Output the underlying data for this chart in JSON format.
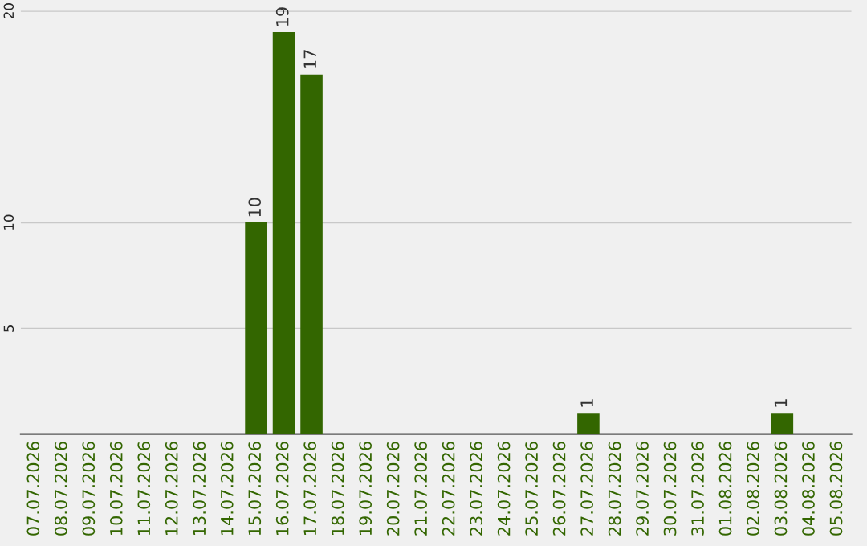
{
  "chart_data": {
    "type": "bar",
    "categories": [
      "07.07.2026",
      "08.07.2026",
      "09.07.2026",
      "10.07.2026",
      "11.07.2026",
      "12.07.2026",
      "13.07.2026",
      "14.07.2026",
      "15.07.2026",
      "16.07.2026",
      "17.07.2026",
      "18.07.2026",
      "19.07.2026",
      "20.07.2026",
      "21.07.2026",
      "22.07.2026",
      "23.07.2026",
      "24.07.2026",
      "25.07.2026",
      "26.07.2026",
      "27.07.2026",
      "28.07.2026",
      "29.07.2026",
      "30.07.2026",
      "31.07.2026",
      "01.08.2026",
      "02.08.2026",
      "03.08.2026",
      "04.08.2026",
      "05.08.2026"
    ],
    "values": [
      0,
      0,
      0,
      0,
      0,
      0,
      0,
      0,
      10,
      19,
      17,
      0,
      0,
      0,
      0,
      0,
      0,
      0,
      0,
      0,
      1,
      0,
      0,
      0,
      0,
      0,
      0,
      1,
      0,
      0
    ],
    "value_labels": [
      null,
      null,
      null,
      null,
      null,
      null,
      null,
      null,
      "10",
      "19",
      "17",
      null,
      null,
      null,
      null,
      null,
      null,
      null,
      null,
      null,
      "1",
      null,
      null,
      null,
      null,
      null,
      null,
      "1",
      null,
      null
    ],
    "color": "#336600",
    "ylim": [
      0,
      20
    ],
    "yticks": [
      5,
      10,
      20
    ],
    "grid": "y"
  }
}
